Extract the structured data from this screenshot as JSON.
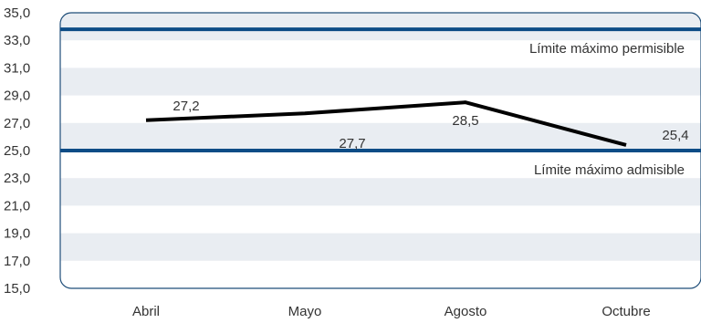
{
  "chart_data": {
    "type": "line",
    "title": "",
    "xlabel": "",
    "ylabel": "",
    "categories": [
      "Abril",
      "Mayo",
      "Agosto",
      "Octubre"
    ],
    "ylim": [
      15,
      35
    ],
    "yticks": [
      "15,0",
      "17,0",
      "19,0",
      "21,0",
      "23,0",
      "25,0",
      "27,0",
      "29,0",
      "31,0",
      "33,0",
      "35,0"
    ],
    "series": [
      {
        "values": [
          27.2,
          27.7,
          28.5,
          25.4
        ],
        "labels": [
          "27,2",
          "27,7",
          "28,5",
          "25,4"
        ],
        "color": "#000000"
      }
    ],
    "reference_lines": [
      {
        "label": "Límite máximo permisible",
        "value": 33.8,
        "color": "#0d4c86"
      },
      {
        "label": "Límite máximo admisible",
        "value": 25.0,
        "color": "#0d4c86"
      }
    ],
    "grid": "alternating-bands",
    "band_color": "#e9edf2",
    "frame_color": "#1f4e79"
  }
}
